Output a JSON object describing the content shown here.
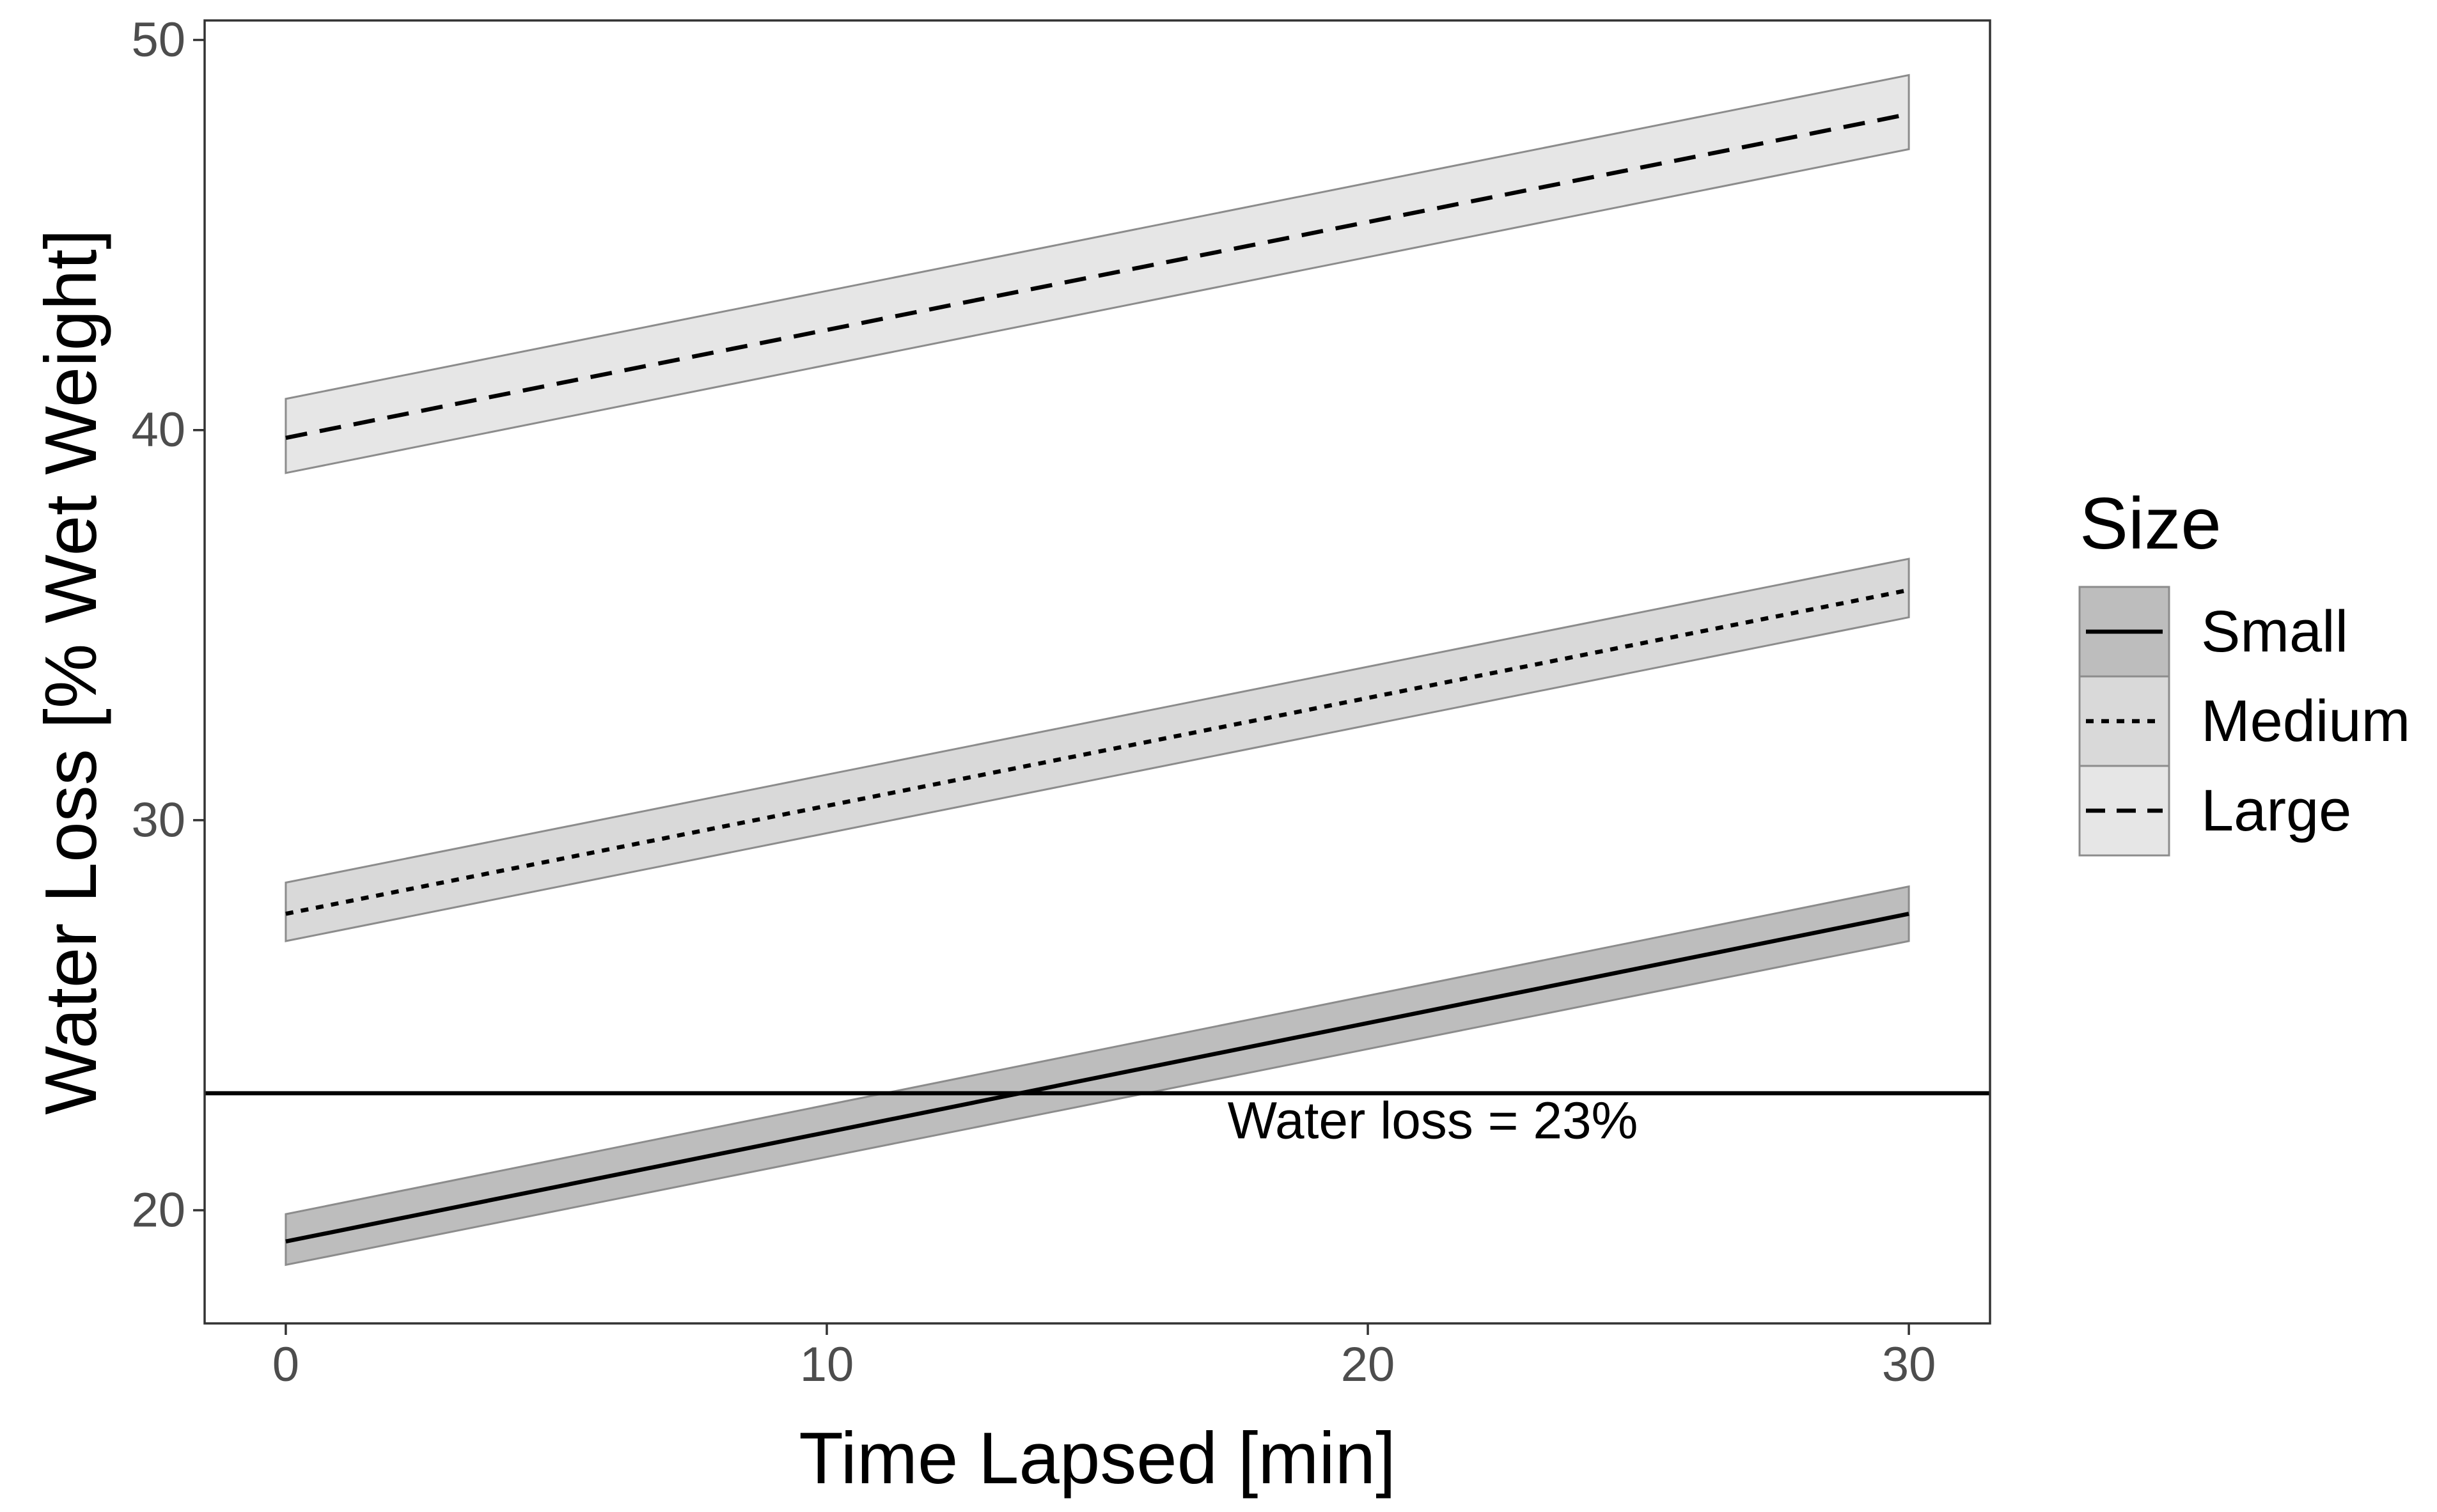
{
  "chart_data": {
    "type": "line",
    "title": "",
    "xlabel": "Time Lapsed [min]",
    "ylabel": "Water Loss [% Wet Weight]",
    "xlim": [
      -1.5,
      31.5
    ],
    "ylim": [
      17.1,
      50.5
    ],
    "x_ticks": [
      0,
      10,
      20,
      30
    ],
    "y_ticks": [
      20,
      30,
      40,
      50
    ],
    "x_tick_labels": [
      "0",
      "10",
      "20",
      "30"
    ],
    "y_tick_labels": [
      "20",
      "30",
      "40",
      "50"
    ],
    "grid": false,
    "legend": {
      "title": "Size",
      "position": "right"
    },
    "series": [
      {
        "name": "Small",
        "line_style": "solid",
        "ribbon_fill": "#bdbdbd",
        "x": [
          0,
          30
        ],
        "y": [
          19.2,
          27.6
        ],
        "lower": [
          18.6,
          26.9
        ],
        "upper": [
          19.9,
          28.3
        ]
      },
      {
        "name": "Medium",
        "line_style": "dotted",
        "ribbon_fill": "#d9d9d9",
        "x": [
          0,
          30
        ],
        "y": [
          27.6,
          35.9
        ],
        "lower": [
          26.9,
          35.2
        ],
        "upper": [
          28.4,
          36.7
        ]
      },
      {
        "name": "Large",
        "line_style": "dashed",
        "ribbon_fill": "#e6e6e6",
        "x": [
          0,
          30
        ],
        "y": [
          39.8,
          48.1
        ],
        "lower": [
          38.9,
          47.2
        ],
        "upper": [
          40.8,
          49.1
        ]
      }
    ],
    "reference_line": {
      "type": "horizontal",
      "y": 23,
      "label": "Water loss = 23%",
      "label_x": 21.2,
      "label_y": 22.2
    }
  }
}
